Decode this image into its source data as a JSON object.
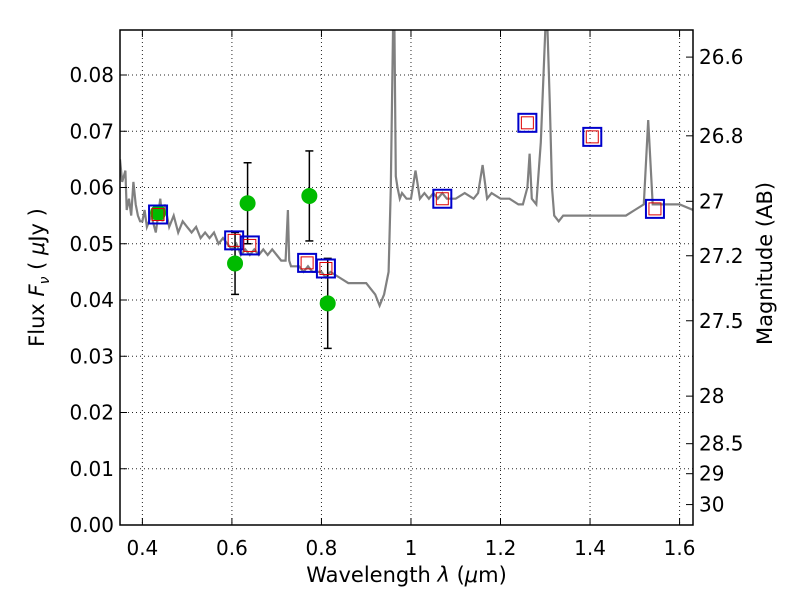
{
  "chart_data": {
    "type": "scatter",
    "xlabel": "Wavelength  λ (μm)",
    "ylabel": "Flux  F_ν  ( μJy )",
    "ylabel2": "Magnitude (AB)",
    "xlim": [
      0.35,
      1.63
    ],
    "ylim": [
      0.0,
      0.088
    ],
    "grid": true,
    "x_ticks": [
      0.4,
      0.6,
      0.8,
      1.0,
      1.2,
      1.4,
      1.6
    ],
    "x_tick_labels": [
      "0.4",
      "0.6",
      "0.8",
      "1",
      "1.2",
      "1.4",
      "1.6"
    ],
    "y_ticks": [
      0.0,
      0.01,
      0.02,
      0.03,
      0.04,
      0.05,
      0.06,
      0.07,
      0.08
    ],
    "y_tick_labels": [
      "0.00",
      "0.01",
      "0.02",
      "0.03",
      "0.04",
      "0.05",
      "0.06",
      "0.07",
      "0.08"
    ],
    "mag_ticks": [
      26.6,
      26.8,
      27,
      27.2,
      27.5,
      28,
      28.5,
      29,
      30
    ],
    "mag_tick_labels": [
      "26.6",
      "26.8",
      "27",
      "27.2",
      "27.5",
      "28",
      "28.5",
      "29",
      "30"
    ],
    "colors": {
      "model": "#808080",
      "observed": "#00bb00",
      "model_photometry": "#0000cc",
      "secondary_marker": "#dd0000",
      "errorbar": "#000000"
    },
    "series": [
      {
        "kind": "model_sed_line",
        "x": [
          0.35,
          0.355,
          0.362,
          0.365,
          0.37,
          0.375,
          0.38,
          0.385,
          0.39,
          0.395,
          0.4,
          0.405,
          0.41,
          0.42,
          0.43,
          0.44,
          0.445,
          0.45,
          0.46,
          0.47,
          0.48,
          0.49,
          0.5,
          0.51,
          0.52,
          0.53,
          0.54,
          0.55,
          0.56,
          0.57,
          0.58,
          0.59,
          0.6,
          0.61,
          0.62,
          0.63,
          0.64,
          0.65,
          0.66,
          0.67,
          0.68,
          0.69,
          0.7,
          0.71,
          0.72,
          0.725,
          0.728,
          0.732,
          0.74,
          0.75,
          0.76,
          0.77,
          0.78,
          0.79,
          0.8,
          0.81,
          0.82,
          0.84,
          0.86,
          0.88,
          0.9,
          0.91,
          0.92,
          0.93,
          0.94,
          0.95,
          0.955,
          0.96,
          0.963,
          0.966,
          0.97,
          0.975,
          0.98,
          0.99,
          1.0,
          1.01,
          1.02,
          1.03,
          1.04,
          1.05,
          1.06,
          1.07,
          1.08,
          1.1,
          1.12,
          1.14,
          1.15,
          1.16,
          1.17,
          1.18,
          1.2,
          1.22,
          1.24,
          1.25,
          1.26,
          1.265,
          1.27,
          1.28,
          1.29,
          1.3,
          1.305,
          1.31,
          1.315,
          1.32,
          1.33,
          1.34,
          1.36,
          1.38,
          1.4,
          1.42,
          1.45,
          1.48,
          1.5,
          1.52,
          1.53,
          1.54,
          1.55,
          1.56,
          1.58,
          1.6,
          1.63
        ],
        "y": [
          0.065,
          0.061,
          0.063,
          0.056,
          0.058,
          0.055,
          0.061,
          0.057,
          0.055,
          0.054,
          0.054,
          0.056,
          0.053,
          0.055,
          0.052,
          0.058,
          0.054,
          0.057,
          0.053,
          0.055,
          0.052,
          0.054,
          0.053,
          0.052,
          0.053,
          0.051,
          0.052,
          0.051,
          0.052,
          0.05,
          0.051,
          0.05,
          0.049,
          0.05,
          0.048,
          0.049,
          0.048,
          0.049,
          0.048,
          0.049,
          0.048,
          0.049,
          0.048,
          0.047,
          0.047,
          0.056,
          0.047,
          0.046,
          0.046,
          0.046,
          0.045,
          0.046,
          0.045,
          0.045,
          0.045,
          0.044,
          0.045,
          0.044,
          0.043,
          0.043,
          0.043,
          0.042,
          0.041,
          0.039,
          0.041,
          0.045,
          0.06,
          0.089,
          0.089,
          0.062,
          0.06,
          0.058,
          0.059,
          0.058,
          0.058,
          0.063,
          0.058,
          0.059,
          0.058,
          0.059,
          0.058,
          0.059,
          0.058,
          0.058,
          0.059,
          0.058,
          0.059,
          0.064,
          0.058,
          0.059,
          0.058,
          0.058,
          0.057,
          0.057,
          0.06,
          0.066,
          0.058,
          0.057,
          0.068,
          0.088,
          0.088,
          0.075,
          0.06,
          0.055,
          0.054,
          0.055,
          0.055,
          0.055,
          0.055,
          0.055,
          0.055,
          0.055,
          0.056,
          0.057,
          0.072,
          0.057,
          0.057,
          0.057,
          0.057,
          0.057,
          0.056
        ]
      },
      {
        "kind": "observed_flux_with_errors",
        "points": [
          {
            "x": 0.435,
            "y": 0.0555,
            "yerr": 0
          },
          {
            "x": 0.607,
            "y": 0.0465,
            "yerr": 0.0055
          },
          {
            "x": 0.635,
            "y": 0.0572,
            "yerr": 0.0072
          },
          {
            "x": 0.773,
            "y": 0.0585,
            "yerr": 0.008
          },
          {
            "x": 0.814,
            "y": 0.0394,
            "yerr": 0.008
          }
        ]
      },
      {
        "kind": "model_photometry_squares",
        "points": [
          {
            "x": 0.435,
            "y": 0.0552
          },
          {
            "x": 0.605,
            "y": 0.0506
          },
          {
            "x": 0.64,
            "y": 0.0497
          },
          {
            "x": 0.768,
            "y": 0.0466
          },
          {
            "x": 0.81,
            "y": 0.0456
          },
          {
            "x": 1.07,
            "y": 0.058
          },
          {
            "x": 1.26,
            "y": 0.0715
          },
          {
            "x": 1.405,
            "y": 0.069
          },
          {
            "x": 1.545,
            "y": 0.0562
          }
        ]
      }
    ]
  }
}
